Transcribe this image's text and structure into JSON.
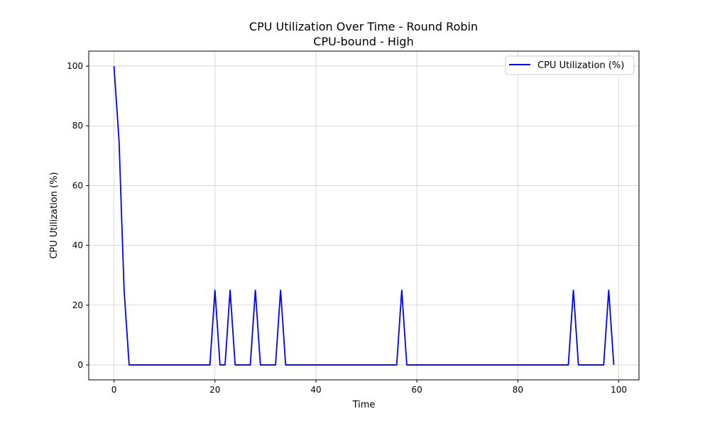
{
  "chart_data": {
    "type": "line",
    "title": "CPU Utilization Over Time - Round Robin",
    "subtitle": "CPU-bound - High",
    "xlabel": "Time",
    "ylabel": "CPU Utilization (%)",
    "xlim": [
      -5,
      104
    ],
    "ylim": [
      -5,
      105
    ],
    "xticks": [
      0,
      20,
      40,
      60,
      80,
      100
    ],
    "yticks": [
      0,
      20,
      40,
      60,
      80,
      100
    ],
    "grid": true,
    "legend_position": "top-right",
    "series": [
      {
        "name": "CPU Utilization (%)",
        "color": "#0000ff",
        "x": [
          0,
          1,
          2,
          3,
          4,
          5,
          6,
          7,
          8,
          9,
          10,
          11,
          12,
          13,
          14,
          15,
          16,
          17,
          18,
          19,
          20,
          21,
          22,
          23,
          24,
          25,
          26,
          27,
          28,
          29,
          30,
          31,
          32,
          33,
          34,
          35,
          36,
          37,
          38,
          39,
          40,
          41,
          42,
          43,
          44,
          45,
          46,
          47,
          48,
          49,
          50,
          51,
          52,
          53,
          54,
          55,
          56,
          57,
          58,
          59,
          60,
          61,
          62,
          63,
          64,
          65,
          66,
          67,
          68,
          69,
          70,
          71,
          72,
          73,
          74,
          75,
          76,
          77,
          78,
          79,
          80,
          81,
          82,
          83,
          84,
          85,
          86,
          87,
          88,
          89,
          90,
          91,
          92,
          93,
          94,
          95,
          96,
          97,
          98,
          99
        ],
        "y": [
          100,
          75,
          25,
          0,
          0,
          0,
          0,
          0,
          0,
          0,
          0,
          0,
          0,
          0,
          0,
          0,
          0,
          0,
          0,
          0,
          25,
          0,
          0,
          25,
          0,
          0,
          0,
          0,
          25,
          0,
          0,
          0,
          0,
          25,
          0,
          0,
          0,
          0,
          0,
          0,
          0,
          0,
          0,
          0,
          0,
          0,
          0,
          0,
          0,
          0,
          0,
          0,
          0,
          0,
          0,
          0,
          0,
          25,
          0,
          0,
          0,
          0,
          0,
          0,
          0,
          0,
          0,
          0,
          0,
          0,
          0,
          0,
          0,
          0,
          0,
          0,
          0,
          0,
          0,
          0,
          0,
          0,
          0,
          0,
          0,
          0,
          0,
          0,
          0,
          0,
          0,
          25,
          0,
          0,
          0,
          0,
          0,
          0,
          25,
          0
        ]
      }
    ]
  }
}
